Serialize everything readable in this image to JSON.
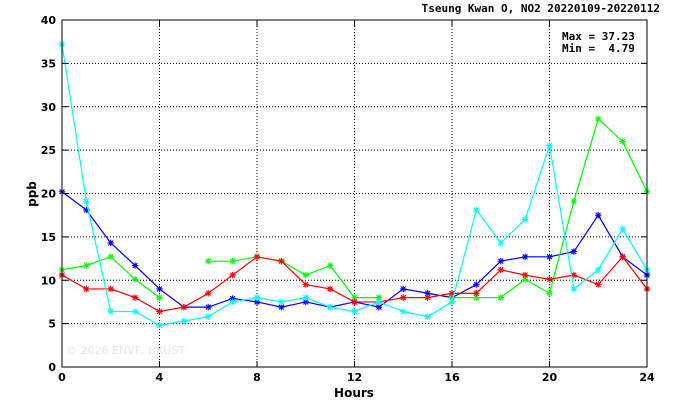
{
  "chart_data": {
    "type": "line",
    "title": "Tseung Kwan O, NO2 20220109-20220112",
    "xlabel": "Hours",
    "ylabel": "ppb",
    "xlim": [
      0,
      24
    ],
    "ylim": [
      0,
      40
    ],
    "xticks": [
      0,
      4,
      8,
      12,
      16,
      20,
      24
    ],
    "yticks": [
      0,
      5,
      10,
      15,
      20,
      25,
      30,
      35,
      40
    ],
    "grid": true,
    "stats": {
      "max": "Max = 37.23",
      "min": "Min =  4.79"
    },
    "watermark": "© 2026 ENVF, HKUST",
    "x": [
      0,
      1,
      2,
      3,
      4,
      5,
      6,
      7,
      8,
      9,
      10,
      11,
      12,
      13,
      14,
      15,
      16,
      17,
      18,
      19,
      20,
      21,
      22,
      23,
      24
    ],
    "series": [
      {
        "color": "#0000ff",
        "values": [
          20.2,
          18.1,
          14.3,
          11.7,
          9.0,
          6.9,
          6.9,
          7.9,
          7.5,
          6.9,
          7.5,
          6.9,
          7.5,
          6.9,
          9.0,
          8.5,
          8.0,
          9.5,
          12.2,
          12.7,
          12.7,
          13.3,
          17.5,
          12.7,
          10.6
        ]
      },
      {
        "color": "#00ff00",
        "values": [
          11.2,
          11.7,
          12.7,
          10.1,
          8.0,
          null,
          12.2,
          12.2,
          12.7,
          12.2,
          10.6,
          11.7,
          8.0,
          8.0,
          null,
          null,
          8.0,
          8.0,
          8.0,
          10.1,
          8.5,
          19.1,
          28.6,
          26.0,
          20.2
        ]
      },
      {
        "color": "#ff0000",
        "values": [
          10.6,
          9.0,
          9.0,
          8.0,
          6.4,
          6.9,
          8.5,
          10.6,
          12.7,
          12.2,
          9.5,
          9.0,
          7.5,
          7.5,
          8.0,
          8.0,
          8.5,
          8.5,
          11.2,
          10.6,
          10.1,
          10.6,
          9.5,
          12.7,
          9.0
        ]
      },
      {
        "color": "#00ffff",
        "values": [
          37.2,
          19.1,
          6.4,
          6.4,
          4.8,
          5.3,
          5.8,
          7.5,
          8.0,
          7.5,
          8.0,
          6.9,
          6.4,
          7.5,
          6.4,
          5.8,
          7.5,
          18.1,
          14.3,
          17.0,
          25.5,
          9.0,
          11.2,
          15.9,
          11.2
        ]
      }
    ]
  }
}
